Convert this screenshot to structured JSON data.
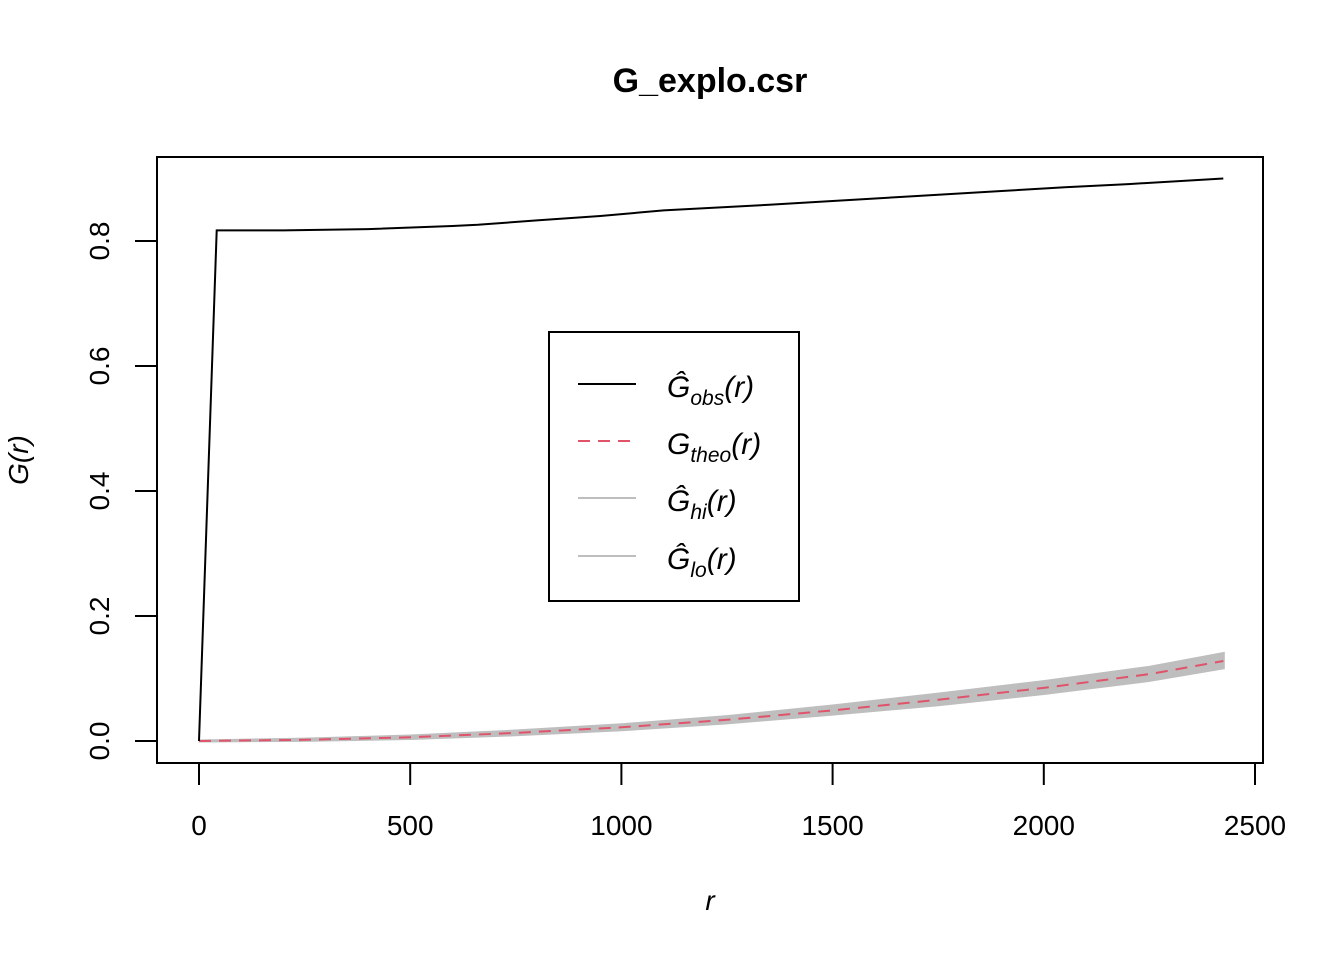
{
  "chart_data": {
    "type": "line",
    "title": "G_explo.csr",
    "xlabel": "r",
    "ylabel": "G(r)",
    "xlim": [
      0,
      2500
    ],
    "ylim": [
      0,
      0.9
    ],
    "x_ticks": [
      0,
      500,
      1000,
      1500,
      2000,
      2500
    ],
    "y_ticks": [
      0.0,
      0.2,
      0.4,
      0.6,
      0.8
    ],
    "x_tick_labels": [
      "0",
      "500",
      "1000",
      "1500",
      "2000",
      "2500"
    ],
    "y_tick_labels": [
      "0.0",
      "0.2",
      "0.4",
      "0.6",
      "0.8"
    ],
    "grid": false,
    "legend_position": "center",
    "series": [
      {
        "name": "Ĝobs(r)",
        "legend_main": "Ĝ",
        "legend_sub": "obs",
        "legend_tail": "(r)",
        "color": "#000000",
        "dash": "solid",
        "x": [
          0,
          42,
          200,
          400,
          600,
          660,
          800,
          950,
          1100,
          1350,
          1500,
          1700,
          1900,
          2050,
          2200,
          2425
        ],
        "y": [
          0,
          0.817,
          0.817,
          0.819,
          0.824,
          0.826,
          0.833,
          0.84,
          0.849,
          0.858,
          0.864,
          0.872,
          0.88,
          0.886,
          0.891,
          0.9
        ]
      },
      {
        "name": "Gtheo(r)",
        "legend_main": "G",
        "legend_sub": "theo",
        "legend_tail": "(r)",
        "color": "#df536b",
        "dash": "dashed",
        "x": [
          0,
          250,
          500,
          750,
          1000,
          1250,
          1500,
          1750,
          2000,
          2250,
          2425
        ],
        "y": [
          0,
          0.002,
          0.006,
          0.013,
          0.022,
          0.034,
          0.049,
          0.066,
          0.085,
          0.107,
          0.128
        ]
      },
      {
        "name": "Ĝhi(r)",
        "legend_main": "Ĝ",
        "legend_sub": "hi",
        "legend_tail": "(r)",
        "color": "#bebebe",
        "dash": "solid",
        "x": [
          0,
          250,
          500,
          750,
          1000,
          1250,
          1500,
          1750,
          2000,
          2250,
          2425
        ],
        "y": [
          0,
          0.003,
          0.008,
          0.016,
          0.026,
          0.039,
          0.056,
          0.075,
          0.095,
          0.118,
          0.14
        ]
      },
      {
        "name": "Ĝlo(r)",
        "legend_main": "Ĝ",
        "legend_sub": "lo",
        "legend_tail": "(r)",
        "color": "#bebebe",
        "dash": "solid",
        "x": [
          0,
          250,
          500,
          750,
          1000,
          1250,
          1500,
          1750,
          2000,
          2250,
          2425
        ],
        "y": [
          0,
          0.001,
          0.004,
          0.01,
          0.018,
          0.029,
          0.043,
          0.058,
          0.076,
          0.097,
          0.117
        ]
      }
    ]
  }
}
